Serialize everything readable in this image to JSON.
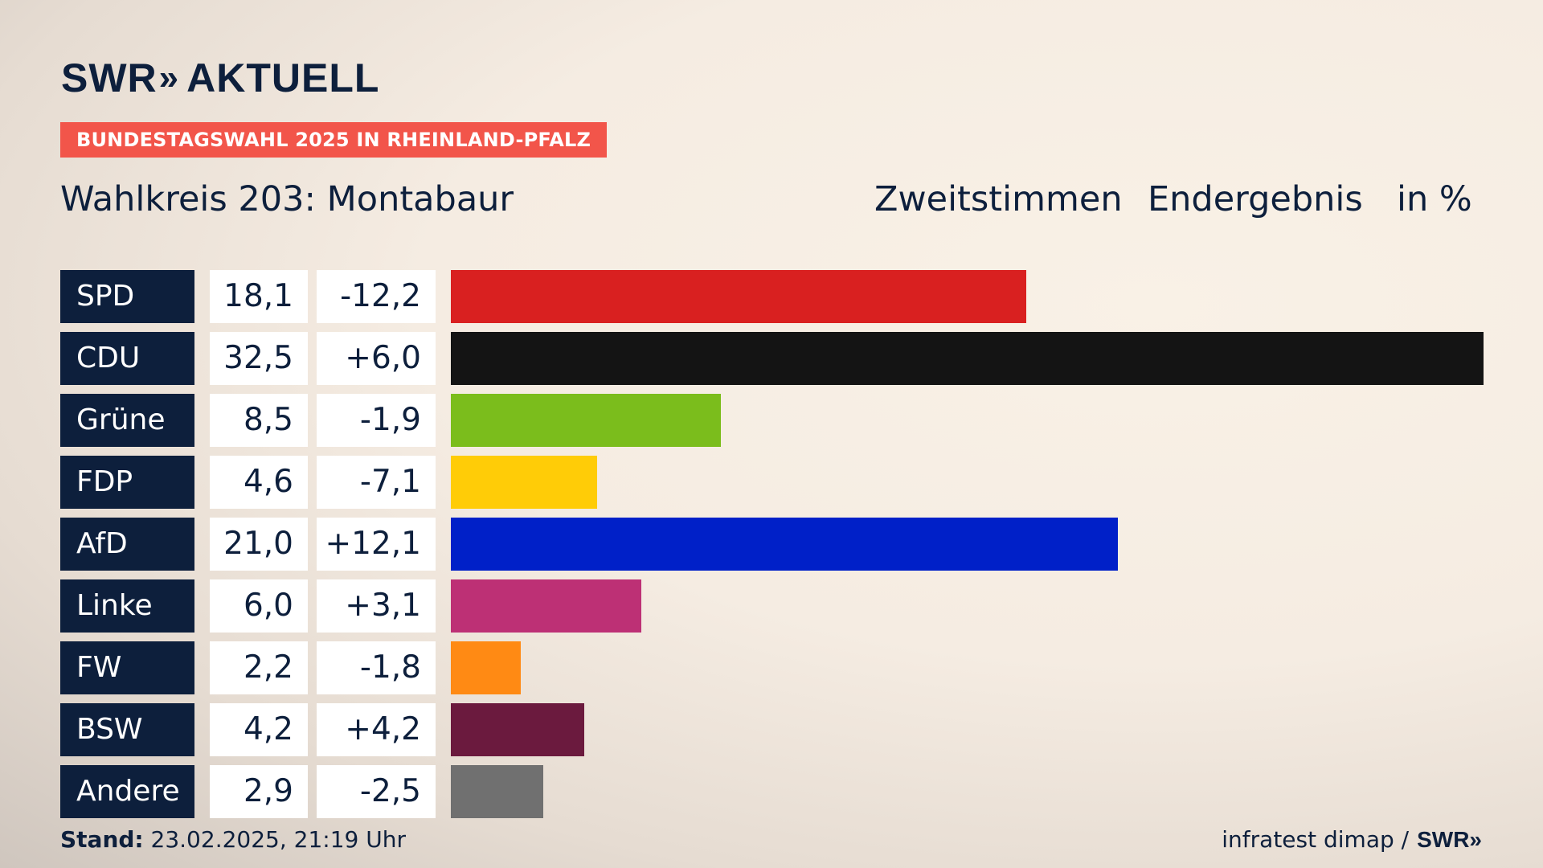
{
  "header": {
    "logo_brand": "SWR",
    "logo_chevrons": "»",
    "logo_product": "AKTUELL",
    "tag": "BUNDESTAGSWAHL 2025 IN RHEINLAND-PFALZ",
    "title": "Wahlkreis 203: Montabaur",
    "subtitle_1": "Zweitstimmen",
    "subtitle_2": "Endergebnis",
    "unit": "in %"
  },
  "chart_data": {
    "type": "bar",
    "orientation": "horizontal",
    "title": "Wahlkreis 203: Montabaur",
    "categories": [
      "SPD",
      "CDU",
      "Grüne",
      "FDP",
      "AfD",
      "Linke",
      "FW",
      "BSW",
      "Andere"
    ],
    "values": [
      18.1,
      32.5,
      8.5,
      4.6,
      21.0,
      6.0,
      2.2,
      4.2,
      2.9
    ],
    "value_labels": [
      "18,1",
      "32,5",
      "8,5",
      "4,6",
      "21,0",
      "6,0",
      "2,2",
      "4,2",
      "2,9"
    ],
    "diff_labels": [
      "-12,2",
      "+6,0",
      "-1,9",
      "-7,1",
      "+12,1",
      "+3,1",
      "-1,8",
      "+4,2",
      "-2,5"
    ],
    "colors": [
      "#d92020",
      "#141414",
      "#7bbd1c",
      "#ffcc07",
      "#0020c8",
      "#bd3075",
      "#ff8a14",
      "#6b1a3e",
      "#707070"
    ],
    "xlim": [
      0,
      32.5
    ],
    "grid": false,
    "legend": "none"
  },
  "footer": {
    "stand_label": "Stand:",
    "stand_value": "23.02.2025, 21:19 Uhr",
    "source": "infratest dimap /",
    "source_logo": "SWR»"
  }
}
